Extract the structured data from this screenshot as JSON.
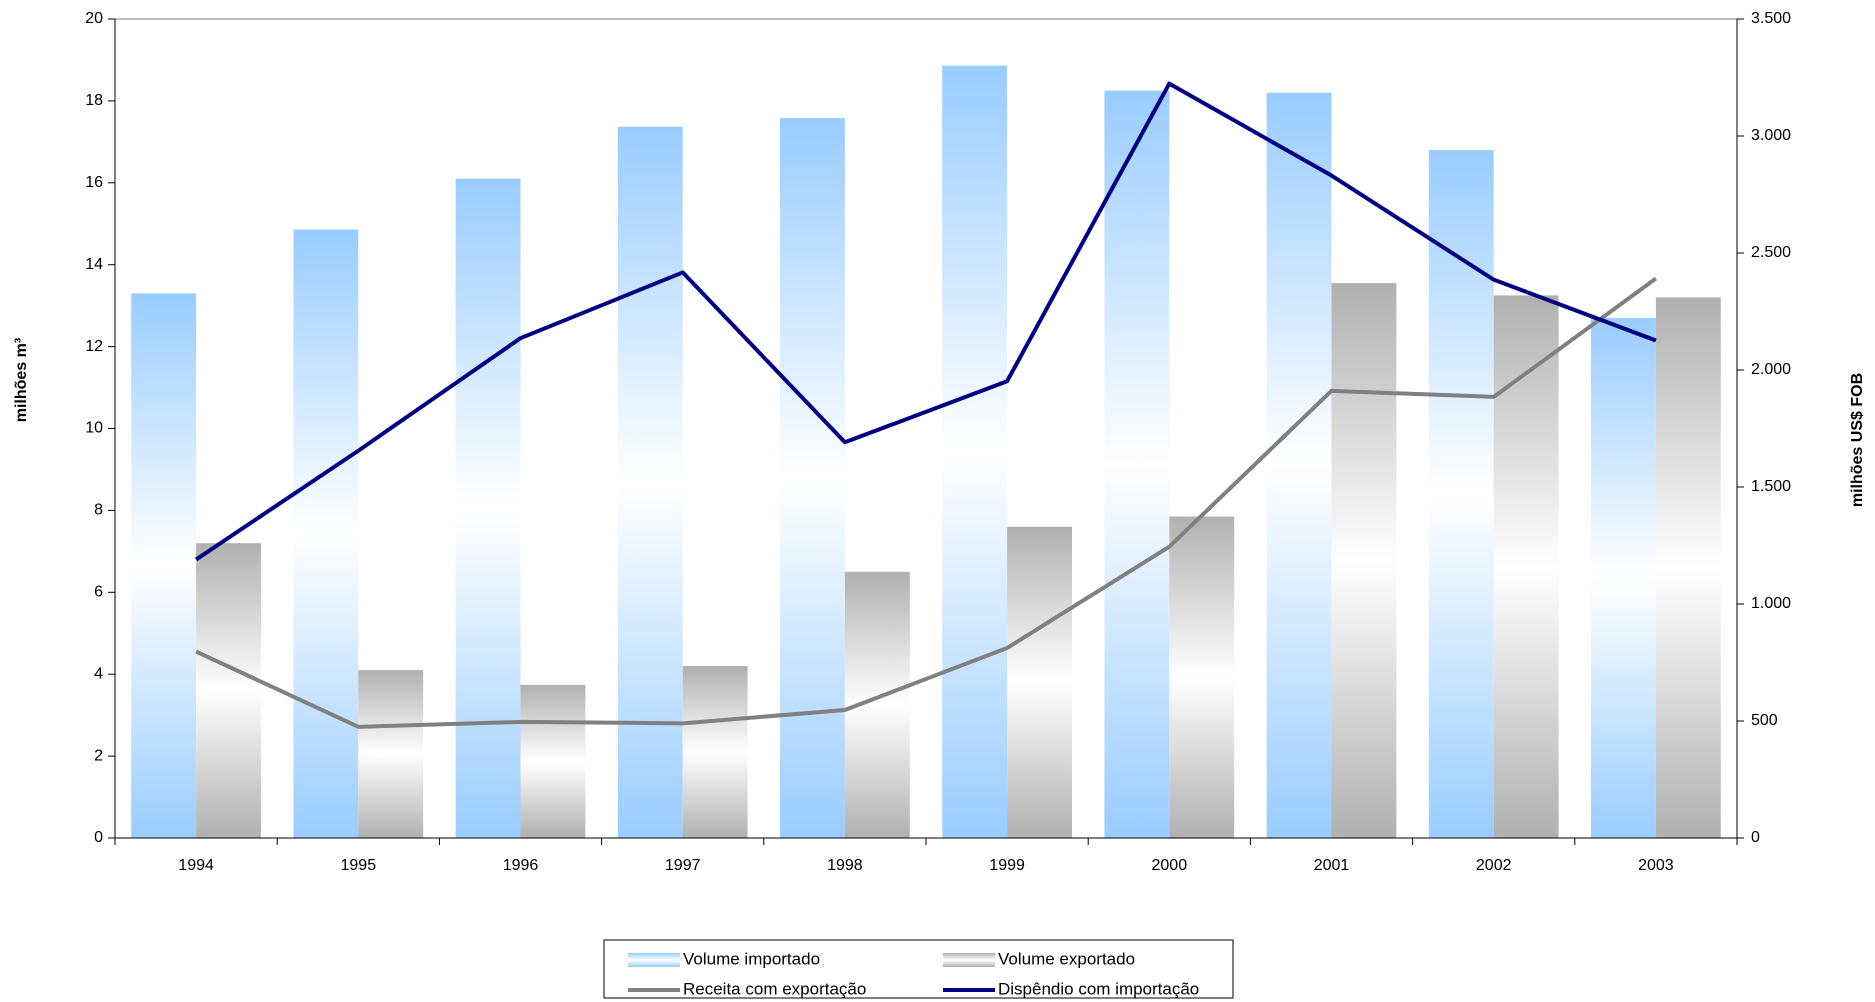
{
  "chart_data": {
    "type": "bar",
    "categories": [
      "1994",
      "1995",
      "1996",
      "1997",
      "1998",
      "1999",
      "2000",
      "2001",
      "2002",
      "2003"
    ],
    "y_label": "milhões m³",
    "y2_label": "milhões US$ FOB",
    "ylim": [
      0,
      20
    ],
    "yticks": [
      0,
      2,
      4,
      6,
      8,
      10,
      12,
      14,
      16,
      18,
      20
    ],
    "y2lim": [
      0,
      3500
    ],
    "y2ticks": [
      0,
      500,
      {
        "value": 1000,
        "label": "1.000"
      },
      {
        "value": 1500,
        "label": "1.500"
      },
      {
        "value": 2000,
        "label": "2.000"
      },
      {
        "value": 2500,
        "label": "2.500"
      },
      {
        "value": 3000,
        "label": "3.000"
      },
      {
        "value": 3500,
        "label": "3.500"
      }
    ],
    "series": [
      {
        "name": "Volume importado",
        "type": "bar",
        "color": "#99ccff",
        "values": [
          13.3,
          14.86,
          16.1,
          17.37,
          17.58,
          18.86,
          18.25,
          18.2,
          16.8,
          12.7
        ]
      },
      {
        "name": "Volume exportado",
        "type": "bar",
        "color": "#b0b0b0",
        "values": [
          7.2,
          4.1,
          3.74,
          4.2,
          6.5,
          7.6,
          7.85,
          13.55,
          13.25,
          13.2
        ]
      },
      {
        "name": "Receita com exportação",
        "type": "line",
        "axis": "y2",
        "color": "#808080",
        "values": [
          797,
          475,
          496,
          490,
          547,
          812,
          1245,
          1911,
          1885,
          2391
        ]
      },
      {
        "name": "Dispêndio com importação",
        "type": "line",
        "axis": "y2",
        "color": "#000080",
        "values": [
          1190,
          1655,
          2136,
          2417,
          1691,
          1952,
          3224,
          2831,
          2386,
          2126
        ]
      }
    ]
  }
}
